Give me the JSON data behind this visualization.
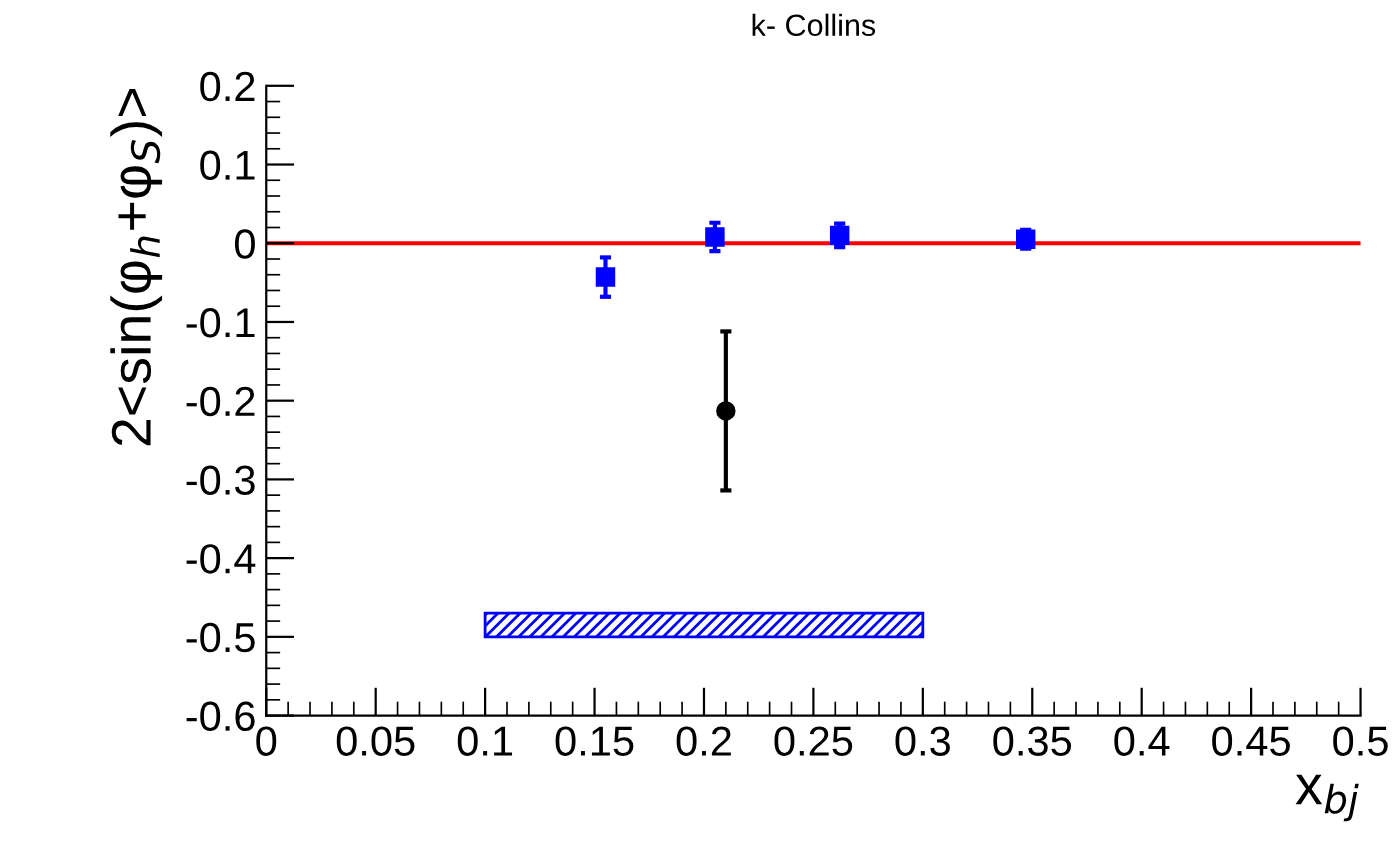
{
  "chart_data": {
    "type": "scatter",
    "title": "k- Collins",
    "xlabel": "x$_{bj}$",
    "ylabel": "2<sin(φ$_{h}$+φ$_{S}$)>",
    "xlim": [
      0,
      0.5
    ],
    "ylim": [
      -0.6,
      0.2
    ],
    "xticks": [
      0,
      0.05,
      0.1,
      0.15,
      0.2,
      0.25,
      0.3,
      0.35,
      0.4,
      0.45,
      0.5
    ],
    "yticks": [
      {
        "value": -0.6,
        "label": "-0.6"
      },
      {
        "value": -0.5,
        "label": "-0.5"
      },
      {
        "value": -0.4,
        "label": "-0.4"
      },
      {
        "value": -0.3,
        "label": "-0.3"
      },
      {
        "value": -0.2,
        "label": "-0.2"
      },
      {
        "value": -0.1,
        "label": "-0.1"
      },
      0,
      0.1,
      0.2
    ],
    "grid": false,
    "legend": false,
    "series": [
      {
        "color": "#0000ff",
        "marker": "square",
        "x": [
          0.155,
          0.205,
          0.262,
          0.347
        ],
        "values": [
          -0.043,
          0.008,
          0.01,
          0.005
        ],
        "errors": [
          0.025,
          0.018,
          0.015,
          0.012
        ]
      },
      {
        "color": "#000000",
        "marker": "circle",
        "x": [
          0.21
        ],
        "values": [
          -0.213
        ],
        "errors": [
          0.101
        ]
      },
      {
        "type": "histogram",
        "color": "#0000ff",
        "bins": [
          0.1,
          0.3
        ],
        "base": [
          -0.5
        ],
        "values": [
          0.03
        ]
      }
    ],
    "ref_lines": [
      {
        "axis": "y",
        "value": 0,
        "color": "#ff0000",
        "line_style": "solid"
      }
    ]
  }
}
